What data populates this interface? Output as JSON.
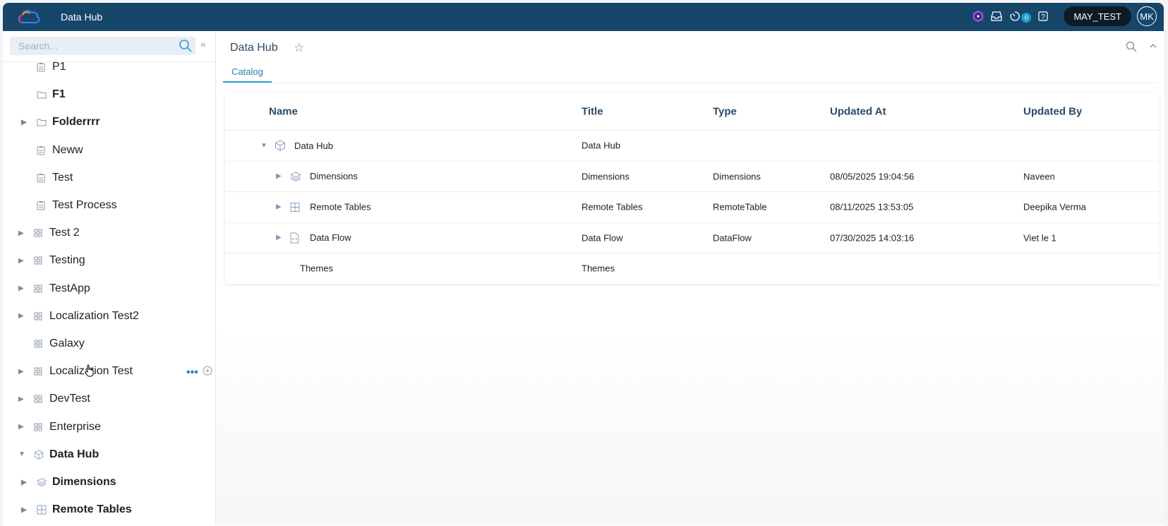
{
  "topbar": {
    "app_title": "Data Hub",
    "environment": "MAY_TEST",
    "avatar_initials": "MK",
    "notification_count": "0",
    "brand_color": "#17466b"
  },
  "sidebar": {
    "search_placeholder": "Search...",
    "items": [
      {
        "label": "P1",
        "icon": "process-icon",
        "bold": false,
        "caret": false,
        "indent": 2
      },
      {
        "label": "F1",
        "icon": "folder-icon",
        "bold": true,
        "caret": false,
        "indent": 2
      },
      {
        "label": "Folderrrr",
        "icon": "folder-icon",
        "bold": true,
        "caret": true,
        "indent": 2
      },
      {
        "label": "Neww",
        "icon": "process-icon",
        "bold": false,
        "caret": false,
        "indent": 2
      },
      {
        "label": "Test",
        "icon": "process-icon",
        "bold": false,
        "caret": false,
        "indent": 2
      },
      {
        "label": "Test Process",
        "icon": "process-icon",
        "bold": false,
        "caret": false,
        "indent": 2
      },
      {
        "label": "Test 2",
        "icon": "app-grid-icon",
        "bold": false,
        "caret": true,
        "indent": 1
      },
      {
        "label": "Testing",
        "icon": "app-grid-icon",
        "bold": false,
        "caret": true,
        "indent": 1
      },
      {
        "label": "TestApp",
        "icon": "app-grid-icon",
        "bold": false,
        "caret": true,
        "indent": 1
      },
      {
        "label": "Localization Test2",
        "icon": "app-grid-icon",
        "bold": false,
        "caret": true,
        "indent": 1
      },
      {
        "label": "Galaxy",
        "icon": "app-grid-icon",
        "bold": false,
        "caret": false,
        "indent": 1
      },
      {
        "label": "Localization Test",
        "icon": "app-grid-icon",
        "bold": false,
        "caret": true,
        "indent": 1,
        "hovered": true
      },
      {
        "label": "DevTest",
        "icon": "app-grid-icon",
        "bold": false,
        "caret": true,
        "indent": 1
      },
      {
        "label": "Enterprise",
        "icon": "app-grid-icon",
        "bold": false,
        "caret": true,
        "indent": 1
      },
      {
        "label": "Data Hub",
        "icon": "cube-icon",
        "bold": true,
        "caret": "open",
        "indent": 1
      },
      {
        "label": "Dimensions",
        "icon": "layers-icon",
        "bold": true,
        "caret": true,
        "indent": 2
      },
      {
        "label": "Remote Tables",
        "icon": "table-icon",
        "bold": true,
        "caret": true,
        "indent": 2
      }
    ]
  },
  "main": {
    "title": "Data Hub",
    "tabs": [
      {
        "label": "Catalog",
        "active": true
      }
    ],
    "table": {
      "columns": [
        "Name",
        "Title",
        "Type",
        "Updated At",
        "Updated By"
      ],
      "rows": [
        {
          "name": "Data Hub",
          "icon": "cube-icon",
          "caret": "open",
          "level": 0,
          "title": "Data Hub",
          "type": "",
          "updated_at": "",
          "updated_by": ""
        },
        {
          "name": "Dimensions",
          "icon": "layers-icon",
          "caret": "closed",
          "level": 1,
          "title": "Dimensions",
          "type": "Dimensions",
          "updated_at": "08/05/2025 19:04:56",
          "updated_by": "Naveen"
        },
        {
          "name": "Remote Tables",
          "icon": "table-icon",
          "caret": "closed",
          "level": 1,
          "title": "Remote Tables",
          "type": "RemoteTable",
          "updated_at": "08/11/2025 13:53:05",
          "updated_by": "Deepika Verma"
        },
        {
          "name": "Data Flow",
          "icon": "file-code-icon",
          "caret": "closed",
          "level": 1,
          "title": "Data Flow",
          "type": "DataFlow",
          "updated_at": "07/30/2025 14:03:16",
          "updated_by": "Viet le 1"
        },
        {
          "name": "Themes",
          "icon": "",
          "caret": "none",
          "level": 1,
          "title": "Themes",
          "type": "",
          "updated_at": "",
          "updated_by": ""
        }
      ]
    }
  }
}
